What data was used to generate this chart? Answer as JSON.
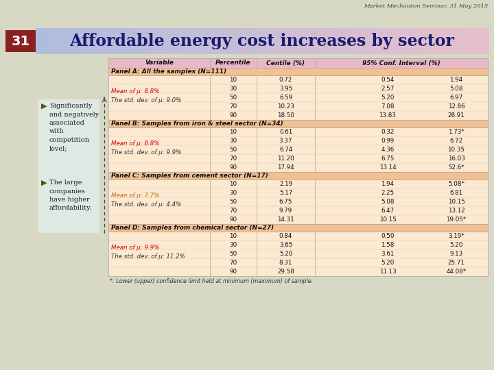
{
  "header_text": "Market Mechanism Seminar, 31 May 2015",
  "slide_number": "31",
  "title": "Affordable energy cost increases by sector",
  "slide_bg": "#d8d9c4",
  "title_bg_left": "#c8d0e8",
  "title_bg_right": "#e8c8d0",
  "slide_num_bg": "#8b2020",
  "col_headers": [
    "Variable",
    "Percentile",
    "Centile (%)",
    "95% Conf. Interval (%)"
  ],
  "panel_bg": "#f5c090",
  "data_row_bg": "#fde8d0",
  "header_row_bg": "#e8b8c8",
  "table_border": "#b0b0b0",
  "panels": [
    {
      "label": "Panel A: All the samples (N=111)",
      "mean_line": "Mean of μ: 8.8%",
      "std_line": "The std. dev. of μ: 9.0%",
      "mean_color": "#cc0000",
      "rows": [
        [
          "10",
          "0.72",
          "0.54",
          "1.94"
        ],
        [
          "30",
          "3.95",
          "2.57",
          "5.08"
        ],
        [
          "50",
          "6.59",
          "5.20",
          "6.97"
        ],
        [
          "70",
          "10.23",
          "7.08",
          "12.86"
        ],
        [
          "90",
          "18.50",
          "13.83",
          "28.91"
        ]
      ]
    },
    {
      "label": "Panel B: Samples from iron & steel sector (N=34)",
      "mean_line": "Mean of μ: 8.8%",
      "std_line": "The std. dev. of μ: 9.9%",
      "mean_color": "#cc0000",
      "rows": [
        [
          "10",
          "0.61",
          "0.32",
          "1.73*"
        ],
        [
          "30",
          "3.37",
          "0.99",
          "6.72"
        ],
        [
          "50",
          "6.74",
          "4.36",
          "10.35"
        ],
        [
          "70",
          "11.20",
          "6.75",
          "16.03"
        ],
        [
          "90",
          "17.94",
          "13.14",
          "52.6*"
        ]
      ]
    },
    {
      "label": "Panel C: Samples from cement sector (N=17)",
      "mean_line": "Mean of μ: 7.7%",
      "std_line": "The std. dev. of μ: 4.4%",
      "mean_color": "#cc6600",
      "rows": [
        [
          "10",
          "2.19",
          "1.94",
          "5.08*"
        ],
        [
          "30",
          "5.17",
          "2.25",
          "6.81"
        ],
        [
          "50",
          "6.75",
          "5.08",
          "10.15"
        ],
        [
          "70",
          "9.79",
          "6.47",
          "13.12"
        ],
        [
          "90",
          "14.31",
          "10.15",
          "19.05*"
        ]
      ]
    },
    {
      "label": "Panel D: Samples from chemical sector (N=27)",
      "mean_line": "Mean of μ: 9.9%",
      "std_line": "The std. dev. of μ: 11.2%",
      "mean_color": "#cc0000",
      "rows": [
        [
          "10",
          "0.84",
          "0.50",
          "3.19*"
        ],
        [
          "30",
          "3.65",
          "1.58",
          "5.20"
        ],
        [
          "50",
          "5.20",
          "3.61",
          "9.13"
        ],
        [
          "70",
          "8.31",
          "5.20",
          "25.71"
        ],
        [
          "90",
          "29.58",
          "11.13",
          "44.08*"
        ]
      ]
    }
  ],
  "footnote": "*: Lower (upper) confidence limit held at minimum (maximum) of sample.",
  "bullet_bg": "#e0f0f0",
  "bullet1": "Significantly\nand negatively\nassociated\nwith\ncompetition\nlevel;",
  "bullet2": "The large\ncompanies\nhave higher\naffordability."
}
